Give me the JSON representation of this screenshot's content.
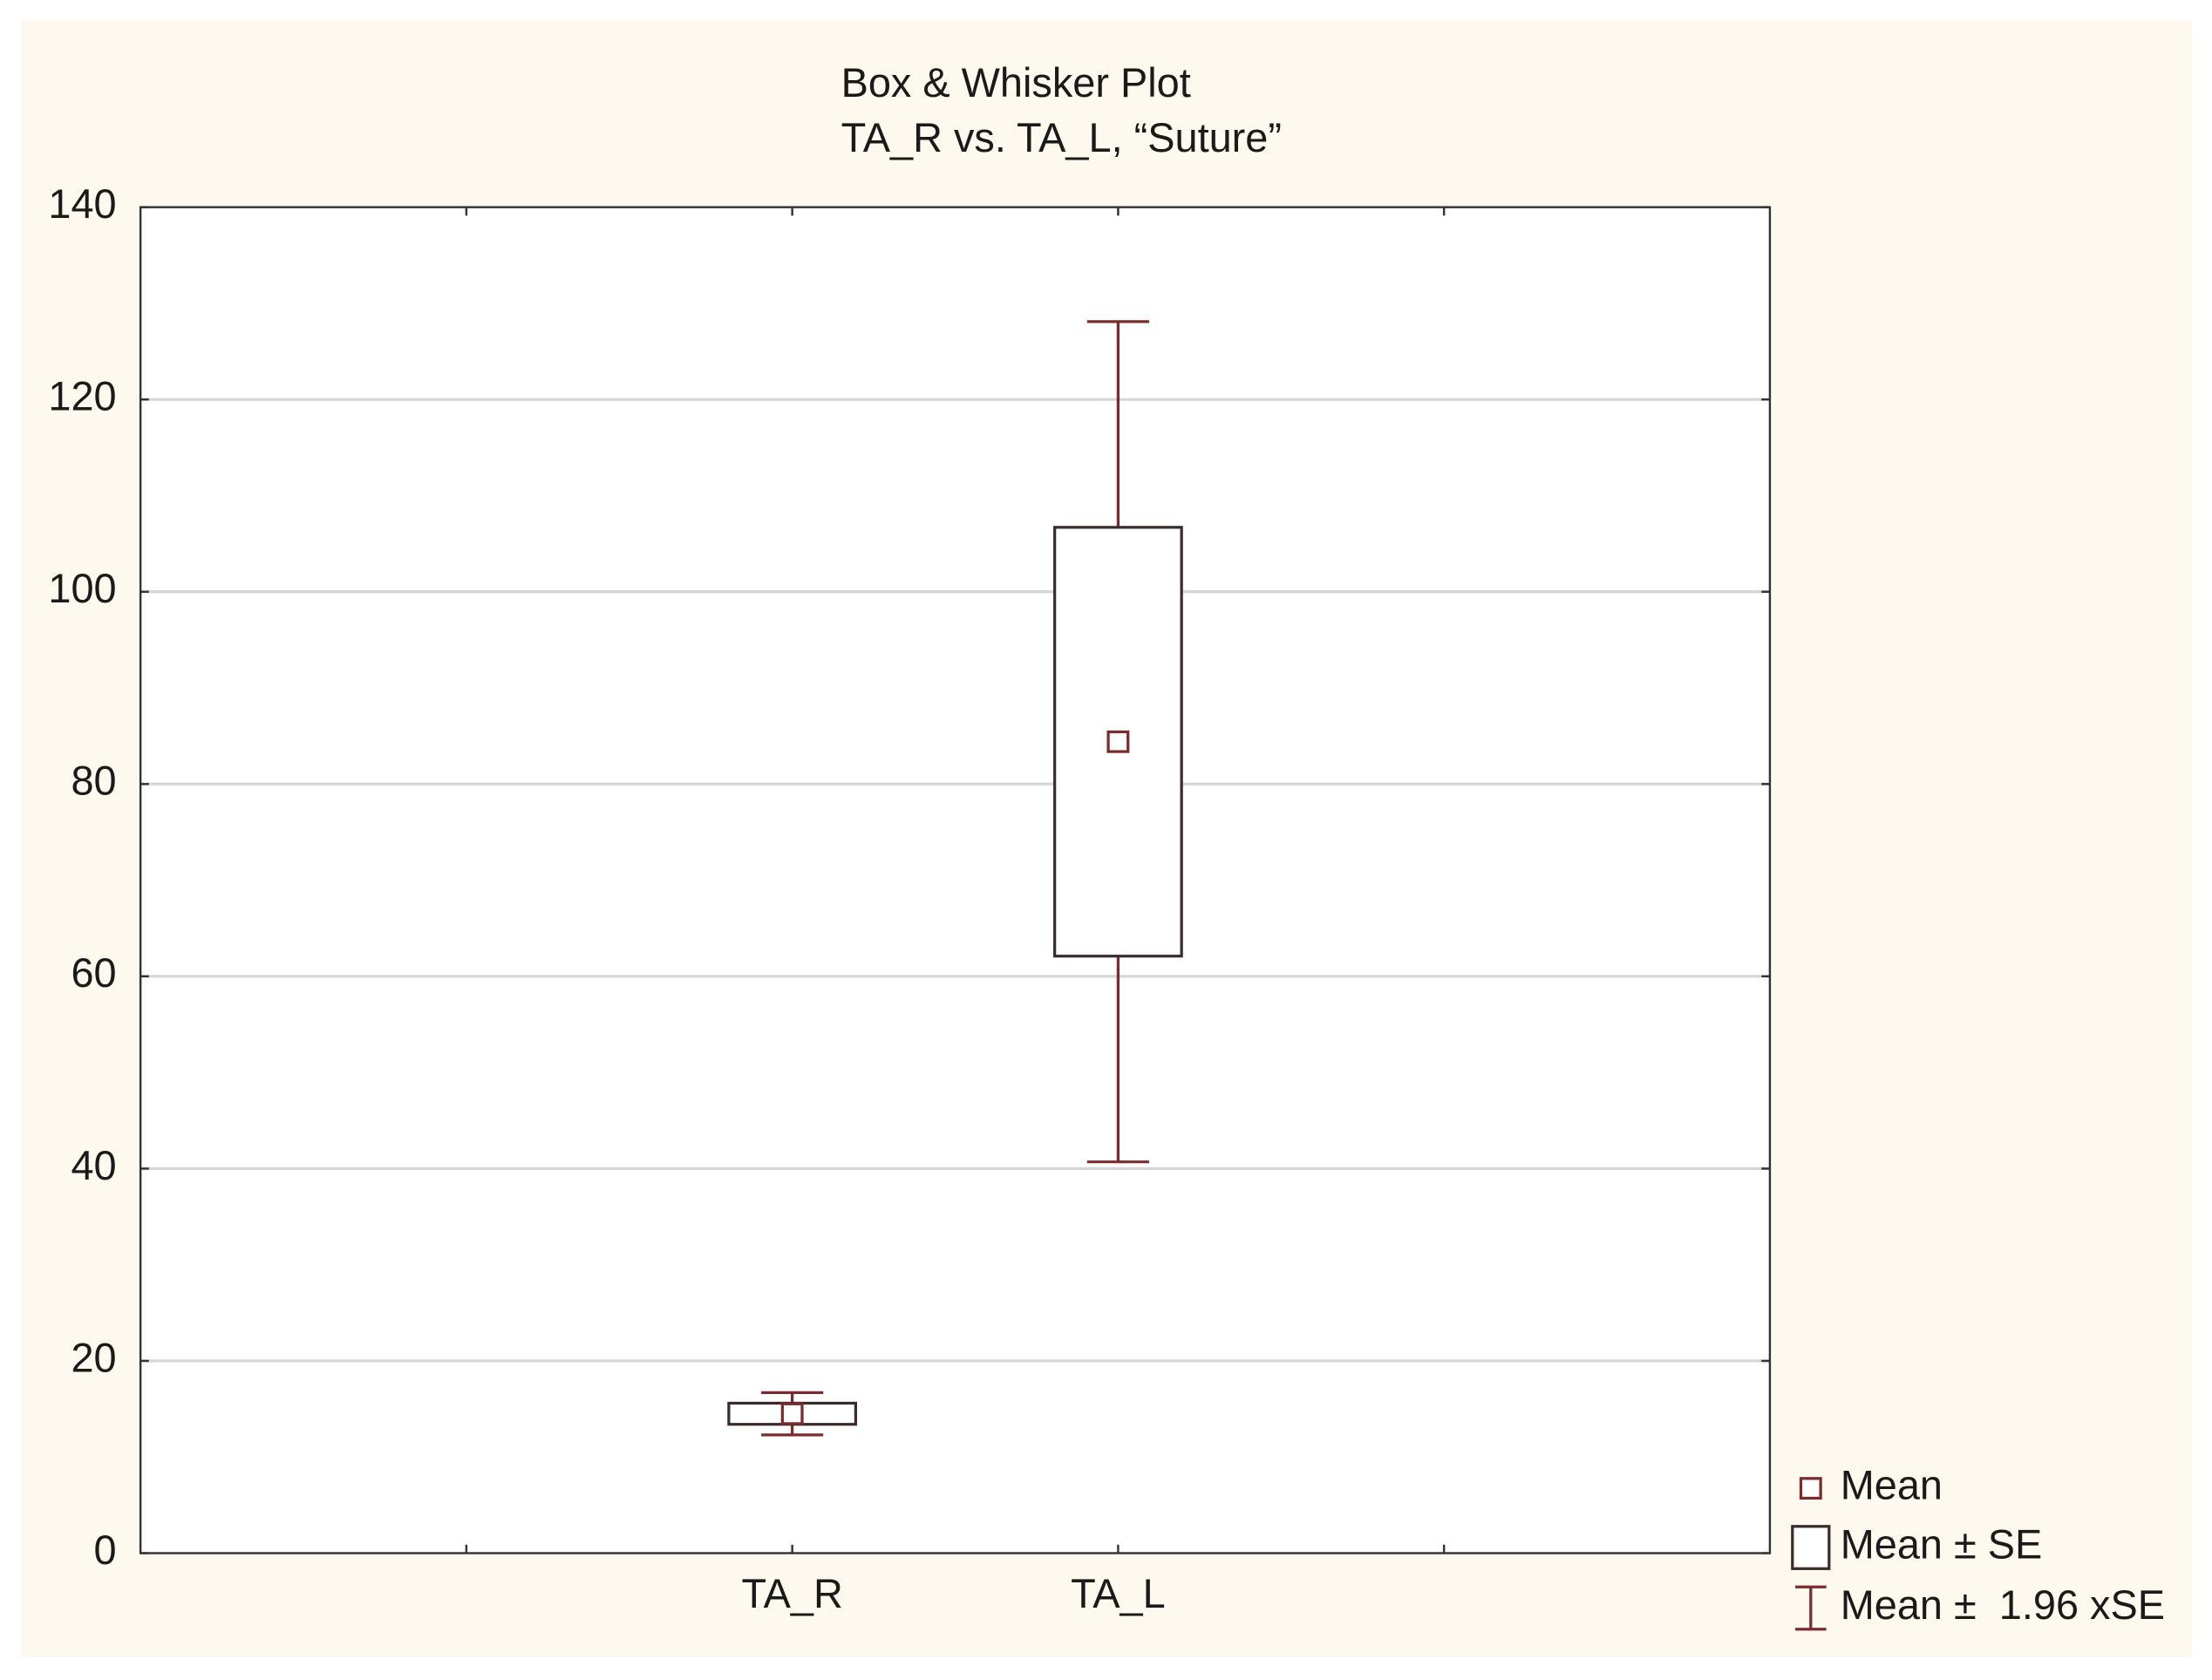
{
  "chart_data": {
    "type": "box",
    "title": "Box & Whisker Plot",
    "subtitle": "TA_R vs. TA_L, “Suture”",
    "categories": [
      null,
      "TA_R",
      "TA_L",
      null
    ],
    "mean": [
      null,
      14.5,
      84.4,
      null
    ],
    "se": [
      null,
      1.1,
      22.3,
      null
    ],
    "ci": [
      null,
      2.2,
      43.7,
      null
    ],
    "ylim": [
      0,
      140
    ],
    "yticks": [
      0,
      20,
      40,
      60,
      80,
      100,
      120,
      140
    ],
    "grid": true,
    "box_color": "#3b2b2b",
    "whisker_color": "#7a2b2b",
    "legend": [
      "Mean",
      "Mean ± SE",
      "Mean ±  1.96 xSE"
    ],
    "legend_position": "bottom-right"
  }
}
